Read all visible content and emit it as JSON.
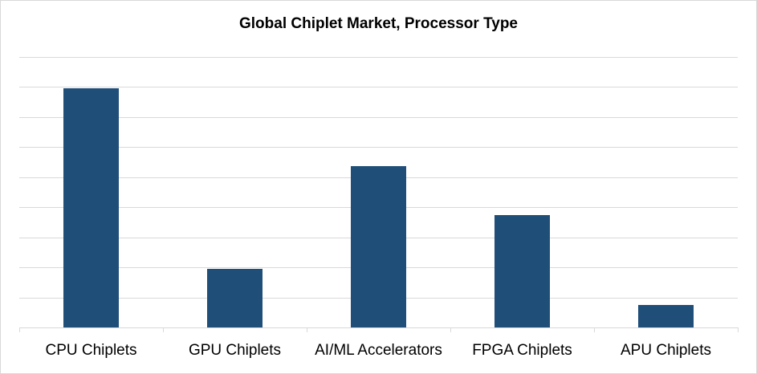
{
  "chart_data": {
    "type": "bar",
    "title": "Global Chiplet Market, Processor Type",
    "categories": [
      "CPU Chiplets",
      "GPU Chiplets",
      "AI/ML Accelerators",
      "FPGA Chiplets",
      "APU Chiplets"
    ],
    "values": [
      7.95,
      1.95,
      5.37,
      3.75,
      0.75
    ],
    "xlabel": "",
    "ylabel": "",
    "ylim": [
      0,
      9
    ],
    "grid": true,
    "y_axis_labels_visible": false,
    "legend": "none",
    "bar_color": "#1f4e79"
  }
}
